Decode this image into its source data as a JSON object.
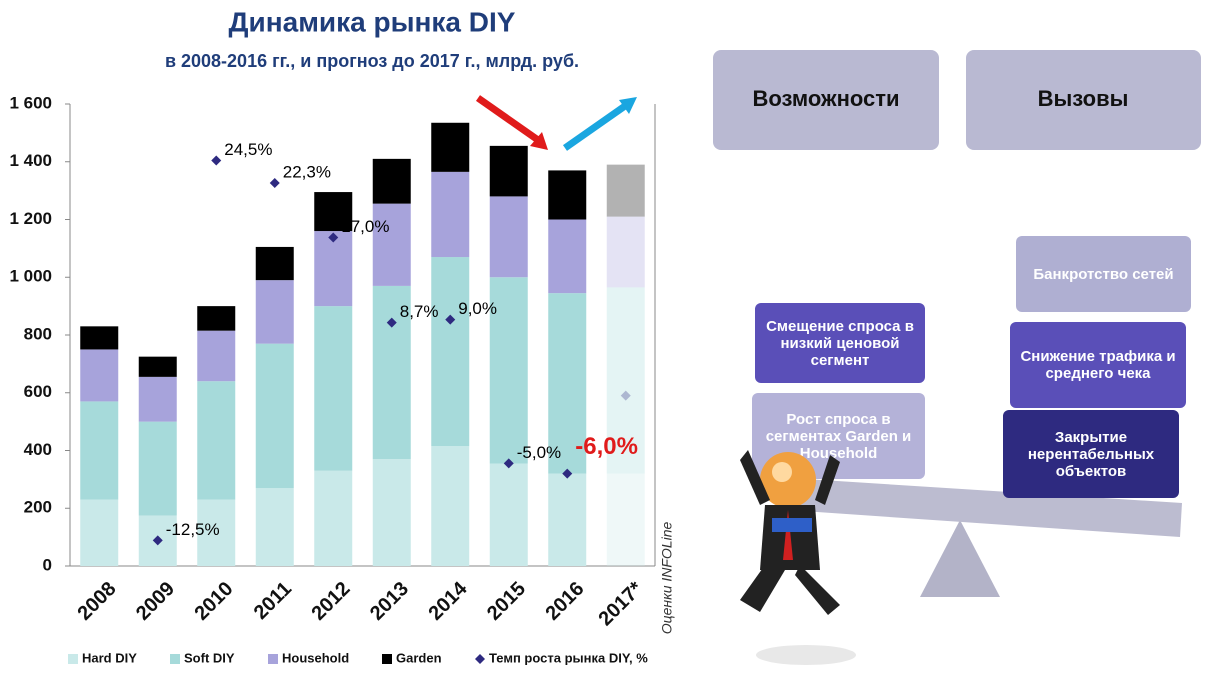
{
  "chart_data": {
    "type": "bar",
    "stacked": true,
    "title": "Динамика рынка DIY",
    "subtitle": "в 2008-2016 гг., и прогноз до 2017 г., млрд. руб.",
    "source_note": "Оценки INFOLine",
    "categories": [
      "2008",
      "2009",
      "2010",
      "2011",
      "2012",
      "2013",
      "2014",
      "2015",
      "2016",
      "2017*"
    ],
    "forecast_last": true,
    "series": [
      {
        "name": "Hard DIY",
        "color": "#c9e9e9",
        "values": [
          230,
          175,
          230,
          270,
          330,
          370,
          415,
          355,
          320,
          320
        ]
      },
      {
        "name": "Soft DIY",
        "color": "#a6dada",
        "values": [
          340,
          325,
          410,
          500,
          570,
          600,
          655,
          645,
          625,
          645
        ]
      },
      {
        "name": "Household",
        "color": "#a7a3db",
        "values": [
          180,
          155,
          175,
          220,
          260,
          285,
          295,
          280,
          255,
          245
        ]
      },
      {
        "name": "Garden",
        "color": "#000000",
        "values": [
          80,
          70,
          85,
          115,
          135,
          155,
          170,
          175,
          170,
          180
        ]
      },
      {
        "name": "Темп роста рынка DIY, %",
        "type": "scatter",
        "axis": "y2",
        "color": "#2e2a80",
        "values": [
          null,
          -12.5,
          24.5,
          22.3,
          17.0,
          8.7,
          9.0,
          -5.0,
          -6.0,
          1.6
        ],
        "value_labels": [
          null,
          "-12,5%",
          "24,5%",
          "22,3%",
          "17,0%",
          "8,7%",
          "9,0%",
          "-5,0%",
          "-6,0%",
          null
        ],
        "label_colors": [
          null,
          "#000000",
          "#000000",
          "#000000",
          "#000000",
          "#000000",
          "#000000",
          "#000000",
          "#e01b1b",
          null
        ]
      }
    ],
    "ylim": [
      0,
      1600
    ],
    "yticks": [
      0,
      200,
      400,
      600,
      800,
      {
        "value": 1000,
        "label": "1 000"
      },
      {
        "value": 1200,
        "label": "1 200"
      },
      {
        "value": 1400,
        "label": "1 400"
      },
      {
        "value": 1600,
        "label": "1 600"
      }
    ],
    "y2lim": [
      -15,
      30
    ],
    "grid": false
  },
  "diagram": {
    "tabs": [
      "Возможности",
      "Вызовы"
    ],
    "opportunities": [
      "Смещение спроса в низкий ценовой сегмент",
      "Рост спроса в сегментах Garden и Household"
    ],
    "challenges": [
      "Банкротство сетей",
      "Снижение трафика и среднего чека",
      "Закрытие нерентабельных объектов"
    ]
  }
}
